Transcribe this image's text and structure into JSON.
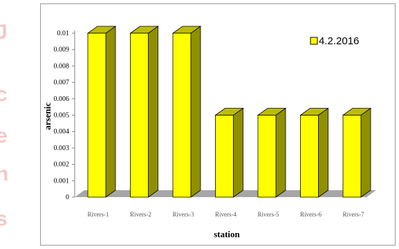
{
  "chart_data": {
    "type": "bar",
    "title": "",
    "xlabel": "station",
    "ylabel": "arsenic",
    "categories": [
      "Rivers-1",
      "Rivers-2",
      "Rivers-3",
      "Rivers-4",
      "Rivers-5",
      "Rivers-6",
      "Rivers-7"
    ],
    "series": [
      {
        "name": "4.2.2016",
        "values": [
          0.01,
          0.01,
          0.01,
          0.005,
          0.005,
          0.005,
          0.005
        ]
      }
    ],
    "ylim": [
      0,
      0.01
    ],
    "yticks": [
      "0",
      "0.001",
      "0.002",
      "0.003",
      "0.004",
      "0.005",
      "0.006",
      "0.007",
      "0.008",
      "0.009",
      "0.01"
    ],
    "grid": false,
    "legend_position": "top-right",
    "colors": {
      "bar_front": "#ffff00",
      "bar_side": "#8f8f00",
      "bar_top": "#bdbd00",
      "floor": "#a6a6a6",
      "axis": "#808080"
    }
  }
}
